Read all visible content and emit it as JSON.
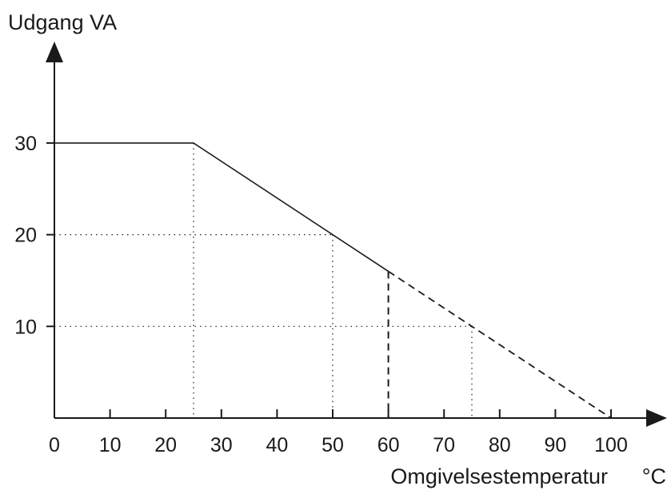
{
  "chart_data": {
    "type": "line",
    "ylabel": "Udgang VA",
    "xlabel": "Omgivelsestemperatur",
    "xunit": "°C",
    "xlim": [
      0,
      100
    ],
    "ylim": [
      0,
      30
    ],
    "xticks": [
      0,
      10,
      20,
      30,
      40,
      50,
      60,
      70,
      80,
      90,
      100
    ],
    "yticks": [
      10,
      20,
      30
    ],
    "series": [
      {
        "style": "solid",
        "x": [
          0,
          25,
          60
        ],
        "y": [
          30,
          30,
          16
        ]
      },
      {
        "style": "dashed",
        "x": [
          60,
          100
        ],
        "y": [
          16,
          0
        ]
      }
    ],
    "reference_lines": [
      {
        "kind": "vertical",
        "x": 25,
        "y": 30,
        "style": "dotted"
      },
      {
        "kind": "vertical",
        "x": 50,
        "y": 20,
        "style": "dotted"
      },
      {
        "kind": "vertical",
        "x": 60,
        "y": 16,
        "style": "dashed"
      },
      {
        "kind": "vertical",
        "x": 75,
        "y": 10,
        "style": "dotted"
      },
      {
        "kind": "horizontal",
        "x": 50,
        "y": 20,
        "style": "dotted"
      },
      {
        "kind": "horizontal",
        "x": 75,
        "y": 10,
        "style": "dotted"
      }
    ],
    "grid": false,
    "legend": "none"
  }
}
